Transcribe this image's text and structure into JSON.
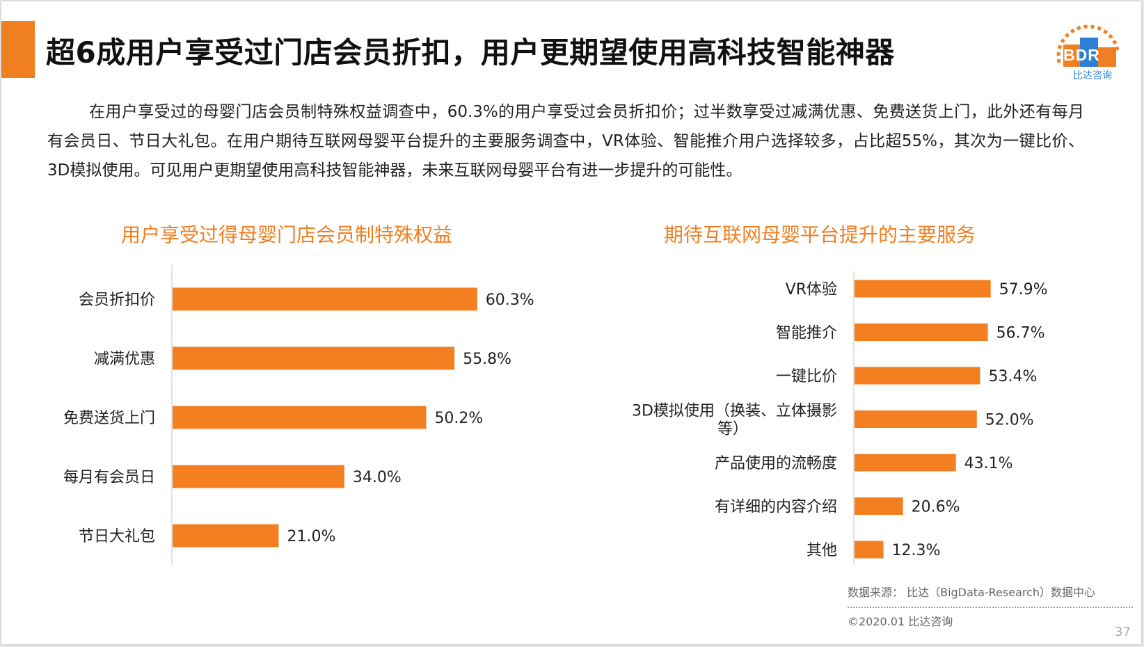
{
  "title": "超6成用户享受过门店会员折扣，用户更期望使用高科技智能神器",
  "logo": {
    "mark": "BDR",
    "subtitle": "比达咨询"
  },
  "intro": "在用户享受过的母婴门店会员制特殊权益调查中，60.3%的用户享受过会员折扣价；过半数享受过减满优惠、免费送货上门，此外还有每月有会员日、节日大礼包。在用户期待互联网母婴平台提升的主要服务调查中，VR体验、智能推介用户选择较多，占比超55%，其次为一键比价、3D模拟使用。可见用户更期望使用高科技智能神器，未来互联网母婴平台有进一步提升的可能性。",
  "chart_data": [
    {
      "type": "bar",
      "orientation": "horizontal",
      "title": "用户享受过得母婴门店会员制特殊权益",
      "categories": [
        "会员折扣价",
        "减满优惠",
        "免费送货上门",
        "每月有会员日",
        "节日大礼包"
      ],
      "values": [
        60.3,
        55.8,
        50.2,
        34.0,
        21.0
      ],
      "value_labels": [
        "60.3%",
        "55.8%",
        "50.2%",
        "34.0%",
        "21.0%"
      ],
      "xlim": [
        0,
        100
      ],
      "unit": "%",
      "color": "#f47f20"
    },
    {
      "type": "bar",
      "orientation": "horizontal",
      "title": "期待互联网母婴平台提升的主要服务",
      "categories": [
        "VR体验",
        "智能推介",
        "一键比价",
        "3D模拟使用（换装、立体摄影等）",
        "产品使用的流畅度",
        "有详细的内容介绍",
        "其他"
      ],
      "category_lines": [
        [
          "VR体验"
        ],
        [
          "智能推介"
        ],
        [
          "一键比价"
        ],
        [
          "3D模拟使用（换装、立体摄影",
          "等）"
        ],
        [
          "产品使用的流畅度"
        ],
        [
          "有详细的内容介绍"
        ],
        [
          "其他"
        ]
      ],
      "values": [
        57.9,
        56.7,
        53.4,
        52.0,
        43.1,
        20.6,
        12.3
      ],
      "value_labels": [
        "57.9%",
        "56.7%",
        "53.4%",
        "52.0%",
        "43.1%",
        "20.6%",
        "12.3%"
      ],
      "xlim": [
        0,
        100
      ],
      "unit": "%",
      "color": "#f47f20"
    }
  ],
  "footer": {
    "source": "数据来源： 比达（BigData-Research）数据中心",
    "copyright": "©2020.01  比达咨询",
    "page_number": "37"
  }
}
